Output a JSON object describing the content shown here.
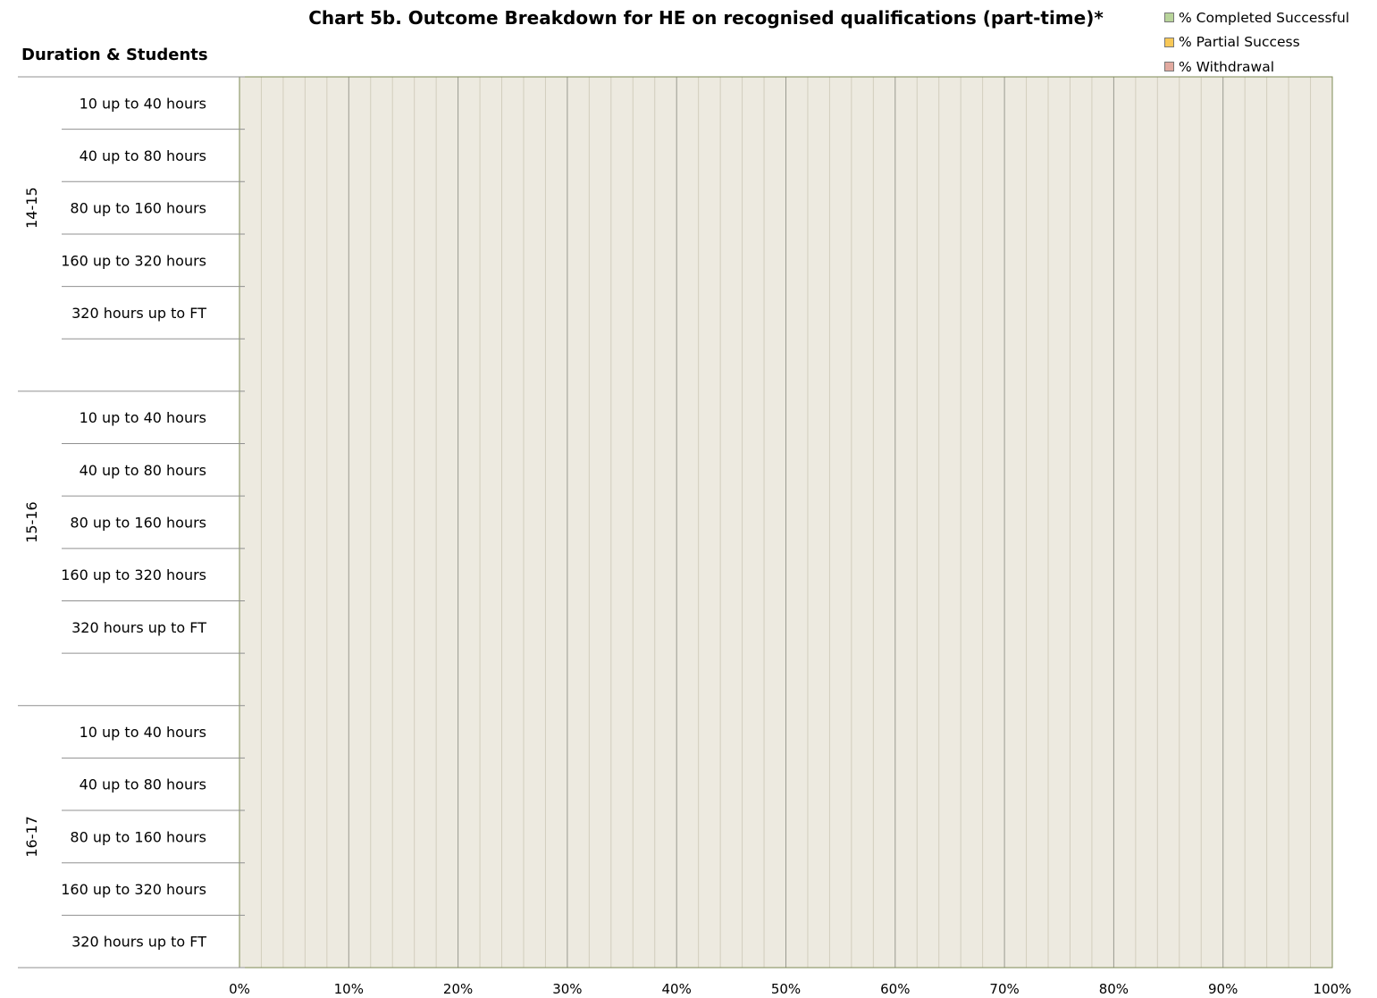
{
  "chart_data": {
    "type": "bar",
    "orientation": "horizontal",
    "stacked": true,
    "title": "Chart 5b. Outcome Breakdown for HE on recognised qualifications (part-time)*",
    "ylabel": "Duration & Students",
    "xlabel": "",
    "xlim": [
      0,
      100
    ],
    "x_ticks": [
      "0%",
      "10%",
      "20%",
      "30%",
      "40%",
      "50%",
      "60%",
      "70%",
      "80%",
      "90%",
      "100%"
    ],
    "groups": [
      {
        "label": "14-15",
        "categories": [
          "10 up to 40 hours",
          "40 up to 80 hours",
          "80 up to 160 hours",
          "160 up to 320 hours",
          "320 hours up to FT",
          ""
        ]
      },
      {
        "label": "15-16",
        "categories": [
          "10 up to 40 hours",
          "40 up to 80 hours",
          "80 up to 160 hours",
          "160 up to 320 hours",
          "320 hours up to FT",
          ""
        ]
      },
      {
        "label": "16-17",
        "categories": [
          "10 up to 40 hours",
          "40 up to 80 hours",
          "80 up to 160 hours",
          "160 up to 320 hours",
          "320 hours up to FT"
        ]
      }
    ],
    "series": [
      {
        "name": "% Completed Successful",
        "color": "#b8d49a",
        "values": [
          null,
          null,
          null,
          null,
          null,
          null,
          null,
          null,
          null,
          null,
          null,
          null,
          null,
          null,
          null,
          null,
          null
        ]
      },
      {
        "name": "% Partial Success",
        "color": "#f8c857",
        "values": [
          null,
          null,
          null,
          null,
          null,
          null,
          null,
          null,
          null,
          null,
          null,
          null,
          null,
          null,
          null,
          null,
          null
        ]
      },
      {
        "name": "% Withdrawal",
        "color": "#e2aaa0",
        "values": [
          null,
          null,
          null,
          null,
          null,
          null,
          null,
          null,
          null,
          null,
          null,
          null,
          null,
          null,
          null,
          null,
          null
        ]
      }
    ],
    "legend_position": "top-right",
    "plot_background": "#edeae0",
    "grid": true
  }
}
